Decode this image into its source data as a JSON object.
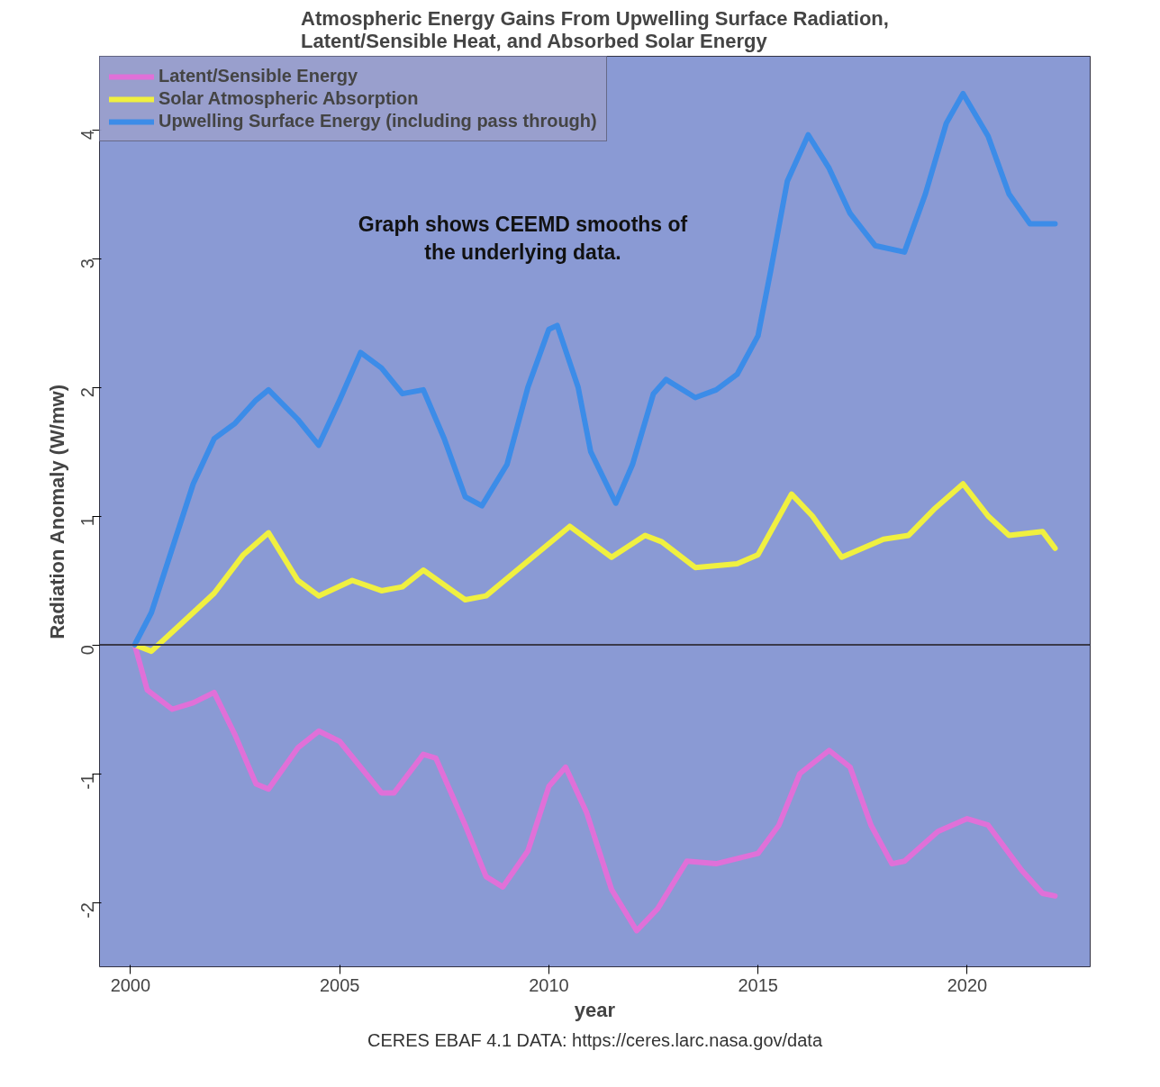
{
  "chart_data": {
    "type": "line",
    "title": "Atmospheric Energy Gains From Upwelling Surface Radiation,\nLatent/Sensible Heat, and Absorbed Solar Energy",
    "xlabel": "year",
    "ylabel": "Radiation Anomaly (W/mw)",
    "annotations": [
      "Graph shows CEEMD smooths of\nthe underlying data.",
      "CERES EBAF 4.1 DATA: https://ceres.larc.nasa.gov/data"
    ],
    "xlim": [
      1999.26,
      2022.94
    ],
    "ylim": [
      -2.5,
      4.57
    ],
    "xticks": [
      2000,
      2005,
      2010,
      2015,
      2020
    ],
    "yticks": [
      -2,
      -1,
      0,
      1,
      2,
      3,
      4
    ],
    "ref_lines": [
      {
        "axis": "y",
        "value": 0,
        "color": "#3a3a4a"
      }
    ],
    "legend": "top left",
    "grid": false,
    "line_style": "solid",
    "series": [
      {
        "name": "Latent/Sensible Energy",
        "color": "#e070d8",
        "x": [
          2000.1,
          2000.4,
          2001,
          2001.5,
          2002,
          2002.5,
          2003,
          2003.3,
          2004,
          2004.5,
          2005,
          2006,
          2006.3,
          2007,
          2007.3,
          2008,
          2008.5,
          2008.9,
          2009.5,
          2010,
          2010.4,
          2010.9,
          2011.5,
          2012.1,
          2012.6,
          2013.3,
          2014,
          2015,
          2015.5,
          2016,
          2016.7,
          2017.2,
          2017.7,
          2018.2,
          2018.5,
          2019.3,
          2020,
          2020.5,
          2021.3,
          2021.8,
          2022.1
        ],
        "values": [
          0,
          -0.35,
          -0.5,
          -0.45,
          -0.37,
          -0.7,
          -1.08,
          -1.12,
          -0.8,
          -0.67,
          -0.75,
          -1.15,
          -1.15,
          -0.85,
          -0.88,
          -1.4,
          -1.8,
          -1.88,
          -1.6,
          -1.1,
          -0.95,
          -1.3,
          -1.9,
          -2.22,
          -2.05,
          -1.68,
          -1.7,
          -1.62,
          -1.4,
          -1.0,
          -0.82,
          -0.95,
          -1.4,
          -1.7,
          -1.68,
          -1.45,
          -1.35,
          -1.4,
          -1.75,
          -1.93,
          -1.95
        ]
      },
      {
        "name": "Solar Atmospheric Absorption",
        "color": "#f0f040",
        "x": [
          2000.1,
          2000.5,
          2001,
          2002,
          2002.7,
          2003.3,
          2004,
          2004.5,
          2005.3,
          2006,
          2006.5,
          2007,
          2008,
          2008.5,
          2009.5,
          2010.5,
          2011.5,
          2012.3,
          2012.7,
          2013.5,
          2014.5,
          2015,
          2015.8,
          2016.3,
          2017,
          2018,
          2018.6,
          2019.2,
          2019.9,
          2020.5,
          2021,
          2021.8,
          2022.1
        ],
        "values": [
          0,
          -0.05,
          0.1,
          0.4,
          0.7,
          0.87,
          0.5,
          0.38,
          0.5,
          0.42,
          0.45,
          0.58,
          0.35,
          0.38,
          0.65,
          0.92,
          0.68,
          0.85,
          0.8,
          0.6,
          0.63,
          0.7,
          1.17,
          1.0,
          0.68,
          0.82,
          0.85,
          1.05,
          1.25,
          1.0,
          0.85,
          0.88,
          0.75
        ]
      },
      {
        "name": "Upwelling Surface Energy (including pass through)",
        "color": "#3c8ce8",
        "x": [
          2000.1,
          2000.5,
          2001,
          2001.5,
          2002,
          2002.5,
          2003,
          2003.3,
          2004,
          2004.5,
          2005,
          2005.5,
          2006,
          2006.5,
          2007,
          2007.5,
          2008,
          2008.4,
          2009,
          2009.5,
          2010,
          2010.2,
          2010.7,
          2011,
          2011.6,
          2012,
          2012.5,
          2012.8,
          2013.5,
          2014,
          2014.5,
          2015,
          2015.3,
          2015.7,
          2016.2,
          2016.7,
          2017.2,
          2017.8,
          2018.5,
          2019,
          2019.5,
          2019.9,
          2020.5,
          2021,
          2021.5,
          2022.1
        ],
        "values": [
          0,
          0.25,
          0.75,
          1.25,
          1.6,
          1.72,
          1.9,
          1.98,
          1.75,
          1.55,
          1.9,
          2.27,
          2.15,
          1.95,
          1.98,
          1.6,
          1.15,
          1.08,
          1.4,
          2.0,
          2.45,
          2.48,
          2.0,
          1.5,
          1.1,
          1.4,
          1.95,
          2.06,
          1.92,
          1.98,
          2.1,
          2.4,
          2.9,
          3.6,
          3.96,
          3.7,
          3.35,
          3.1,
          3.05,
          3.5,
          4.05,
          4.28,
          3.95,
          3.5,
          3.27,
          3.27
        ]
      }
    ]
  }
}
